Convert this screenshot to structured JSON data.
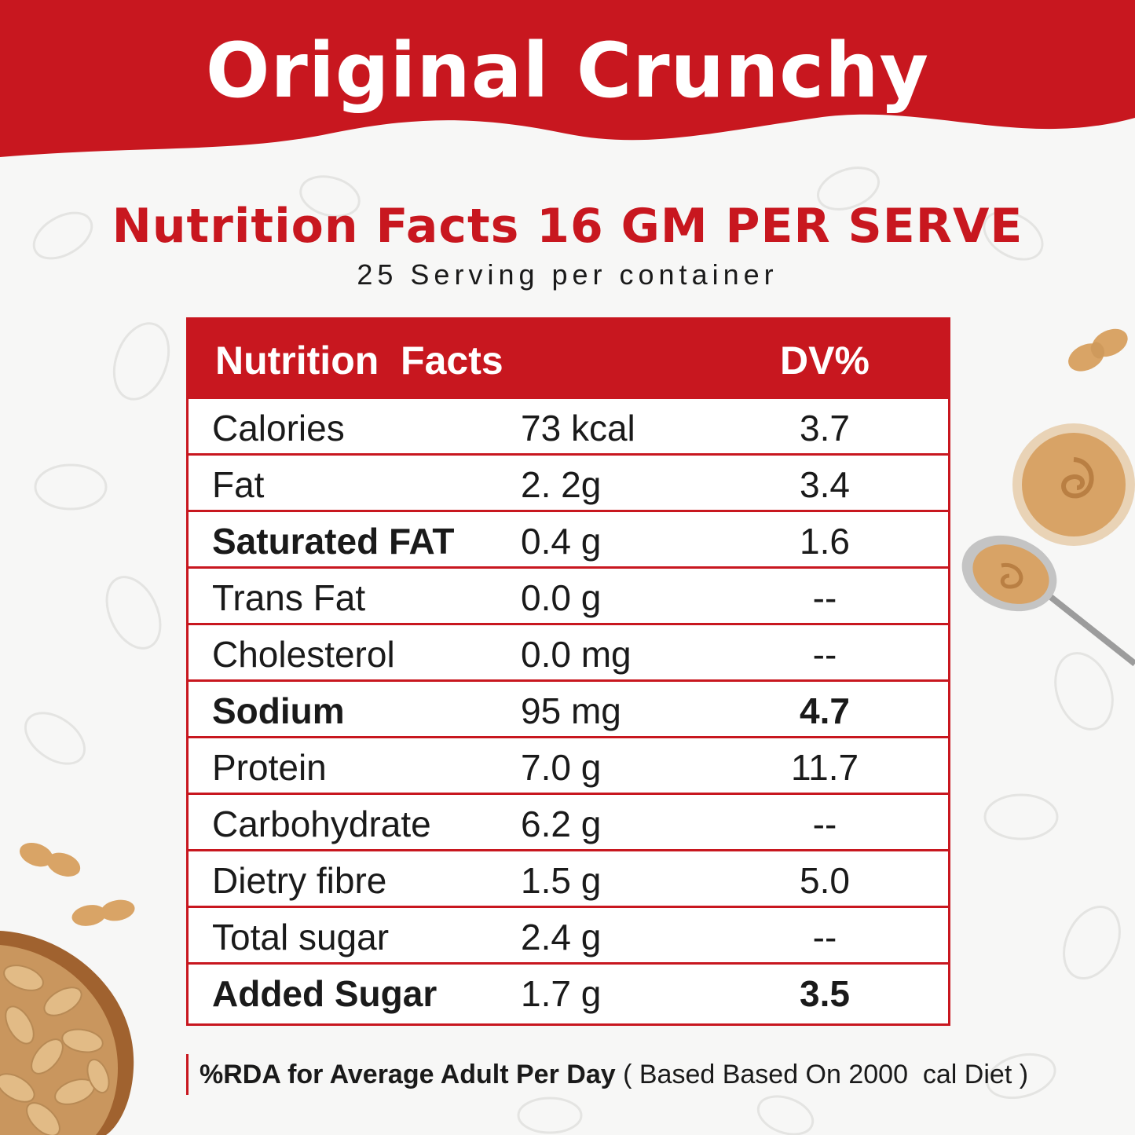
{
  "header": {
    "title": "Original Crunchy",
    "banner_color": "#c8171f"
  },
  "nutrition_heading": "Nutrition Facts 16 GM PER SERVE",
  "serving_line": "25 Serving per container",
  "table": {
    "header_label": "Nutrition  Facts",
    "header_dv": "DV%",
    "rows": [
      {
        "name": "Calories",
        "amount": "73 kcal",
        "dv": "3.7",
        "bold_name": false,
        "bold_dv": false
      },
      {
        "name": "Fat",
        "amount": "2. 2g",
        "dv": "3.4",
        "bold_name": false,
        "bold_dv": false
      },
      {
        "name": "Saturated FAT",
        "amount": "0.4 g",
        "dv": "1.6",
        "bold_name": true,
        "bold_dv": false
      },
      {
        "name": "Trans Fat",
        "amount": "0.0 g",
        "dv": "--",
        "bold_name": false,
        "bold_dv": false
      },
      {
        "name": "Cholesterol",
        "amount": "0.0 mg",
        "dv": "--",
        "bold_name": false,
        "bold_dv": false
      },
      {
        "name": "Sodium",
        "amount": "95 mg",
        "dv": "4.7",
        "bold_name": true,
        "bold_dv": true
      },
      {
        "name": "Protein",
        "amount": "7.0 g",
        "dv": "11.7",
        "bold_name": false,
        "bold_dv": false
      },
      {
        "name": "Carbohydrate",
        "amount": "6.2 g",
        "dv": "--",
        "bold_name": false,
        "bold_dv": false
      },
      {
        "name": "Dietry fibre",
        "amount": "1.5 g",
        "dv": "5.0",
        "bold_name": false,
        "bold_dv": false
      },
      {
        "name": "Total sugar",
        "amount": "2.4 g",
        "dv": "--",
        "bold_name": false,
        "bold_dv": false
      },
      {
        "name": "Added Sugar",
        "amount": "1.7 g",
        "dv": "3.5",
        "bold_name": true,
        "bold_dv": true
      }
    ]
  },
  "footnote": {
    "bold": "%RDA for Average Adult Per Day",
    "regular": " ( Based Based On 2000  cal Diet )"
  },
  "decorations": [
    "peanut-icon",
    "peanut-butter-bowl-icon",
    "peanut-butter-spoon-icon",
    "peanut-bowl-icon"
  ]
}
